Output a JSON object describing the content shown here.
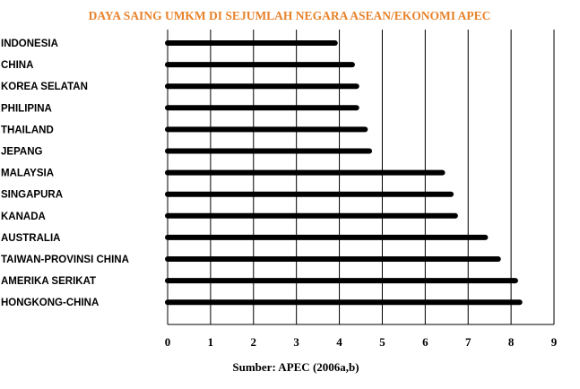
{
  "chart_data": {
    "type": "bar",
    "orientation": "horizontal",
    "title": "DAYA SAING UMKM DI SEJUMLAH NEGARA ASEAN/EKONOMI APEC",
    "source": "Sumber: APEC (2006a,b)",
    "categories": [
      "INDONESIA",
      "CHINA",
      "KOREA SELATAN",
      "PHILIPINA",
      "THAILAND",
      "JEPANG",
      "MALAYSIA",
      "SINGAPURA",
      "KANADA",
      "AUSTRALIA",
      "TAIWAN-PROVINSI CHINA",
      "AMERIKA SERIKAT",
      "HONGKONG-CHINA"
    ],
    "values": [
      3.9,
      4.3,
      4.4,
      4.4,
      4.6,
      4.7,
      6.4,
      6.6,
      6.7,
      7.4,
      7.7,
      8.1,
      8.2
    ],
    "xlim": [
      0,
      9
    ],
    "xticks": [
      "0",
      "1",
      "2",
      "3",
      "4",
      "5",
      "6",
      "7",
      "8",
      "9"
    ],
    "grid": "vertical",
    "color": "#000000",
    "title_color": "#e8822a"
  }
}
